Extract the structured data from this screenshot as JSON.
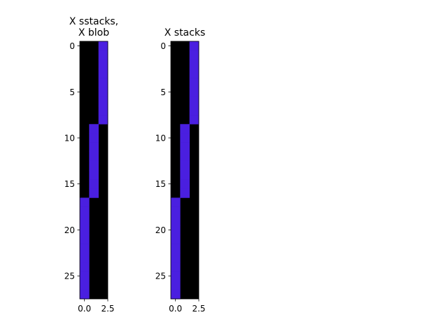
{
  "chart_data": [
    {
      "type": "heatmap",
      "title": "X sstacks,\nX blob",
      "rows": 28,
      "cols": 3,
      "cell_on_color": "#4a1fe0",
      "cell_off_color": "#000000",
      "active_column_ranges": [
        {
          "col": 2,
          "row_start": 0,
          "row_end": 8
        },
        {
          "col": 1,
          "row_start": 9,
          "row_end": 16
        },
        {
          "col": 0,
          "row_start": 17,
          "row_end": 27
        }
      ],
      "xticks": [
        0.0,
        2.5
      ],
      "xtick_labels": [
        "0.0",
        "2.5"
      ],
      "yticks": [
        0,
        5,
        10,
        15,
        20,
        25
      ],
      "ytick_labels": [
        "0",
        "5",
        "10",
        "15",
        "20",
        "25"
      ],
      "xlim": [
        -0.5,
        2.5
      ],
      "ylim": [
        27.5,
        -0.5
      ]
    },
    {
      "type": "heatmap",
      "title": "X stacks",
      "rows": 28,
      "cols": 3,
      "cell_on_color": "#4a1fe0",
      "cell_off_color": "#000000",
      "active_column_ranges": [
        {
          "col": 2,
          "row_start": 0,
          "row_end": 8
        },
        {
          "col": 1,
          "row_start": 9,
          "row_end": 16
        },
        {
          "col": 0,
          "row_start": 17,
          "row_end": 27
        }
      ],
      "xticks": [
        0.0,
        2.5
      ],
      "xtick_labels": [
        "0.0",
        "2.5"
      ],
      "yticks": [
        0,
        5,
        10,
        15,
        20,
        25
      ],
      "ytick_labels": [
        "0",
        "5",
        "10",
        "15",
        "20",
        "25"
      ],
      "xlim": [
        -0.5,
        2.5
      ],
      "ylim": [
        27.5,
        -0.5
      ]
    }
  ]
}
